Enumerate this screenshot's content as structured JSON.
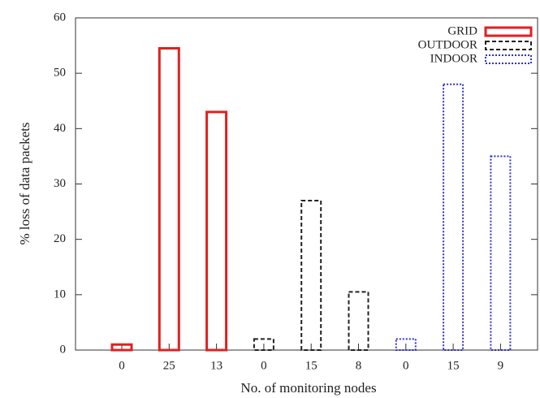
{
  "chart_data": {
    "type": "bar",
    "categories": [
      "0",
      "25",
      "13",
      "0",
      "15",
      "8",
      "0",
      "15",
      "9"
    ],
    "series": [
      {
        "name": "GRID",
        "color": "#e02020",
        "line_style": "solid",
        "values": [
          1,
          54.5,
          43,
          null,
          null,
          null,
          null,
          null,
          null
        ]
      },
      {
        "name": "OUTDOOR",
        "color": "#222222",
        "line_style": "dashed",
        "values": [
          null,
          null,
          null,
          2,
          27,
          10.5,
          null,
          null,
          null
        ]
      },
      {
        "name": "INDOOR",
        "color": "#3030d0",
        "line_style": "dotted",
        "values": [
          null,
          null,
          null,
          null,
          null,
          null,
          2,
          48,
          35
        ]
      }
    ],
    "ylim": [
      0,
      60
    ],
    "yticks": [
      0,
      10,
      20,
      30,
      40,
      50,
      60
    ],
    "ylabel": "% loss of data packets",
    "xlabel": "No. of monitoring nodes",
    "legend": "top-right"
  }
}
